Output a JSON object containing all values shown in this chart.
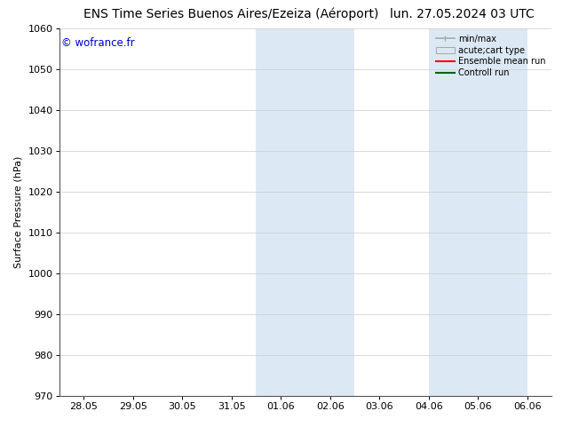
{
  "title_left": "ENS Time Series Buenos Aires/Ezeiza (Aéroport)",
  "title_right": "lun. 27.05.2024 03 UTC",
  "ylabel": "Surface Pressure (hPa)",
  "watermark": "© wofrance.fr",
  "watermark_color": "#0000cc",
  "ylim": [
    970,
    1060
  ],
  "yticks": [
    970,
    980,
    990,
    1000,
    1010,
    1020,
    1030,
    1040,
    1050,
    1060
  ],
  "xtick_labels": [
    "28.05",
    "29.05",
    "30.05",
    "31.05",
    "01.06",
    "02.06",
    "03.06",
    "04.06",
    "05.06",
    "06.06"
  ],
  "xtick_positions": [
    0,
    1,
    2,
    3,
    4,
    5,
    6,
    7,
    8,
    9
  ],
  "xlim": [
    -0.5,
    9.5
  ],
  "shaded_bands": [
    {
      "x_start": 3.5,
      "x_end": 4.5,
      "color": "#dce9f5"
    },
    {
      "x_start": 4.5,
      "x_end": 5.5,
      "color": "#dce9f5"
    },
    {
      "x_start": 7.0,
      "x_end": 8.0,
      "color": "#dce9f5"
    },
    {
      "x_start": 8.0,
      "x_end": 9.0,
      "color": "#dce9f5"
    }
  ],
  "background_color": "#ffffff",
  "grid_color": "#cccccc",
  "legend_labels": [
    "min/max",
    "acute;cart type",
    "Ensemble mean run",
    "Controll run"
  ],
  "legend_line_colors": [
    "#aaaaaa",
    "#aaaaaa",
    "#ff0000",
    "#008000"
  ],
  "legend_fill_colors": [
    "#ffffff",
    "#dce9f5",
    null,
    null
  ],
  "title_fontsize": 10,
  "axis_label_fontsize": 8,
  "tick_fontsize": 8
}
